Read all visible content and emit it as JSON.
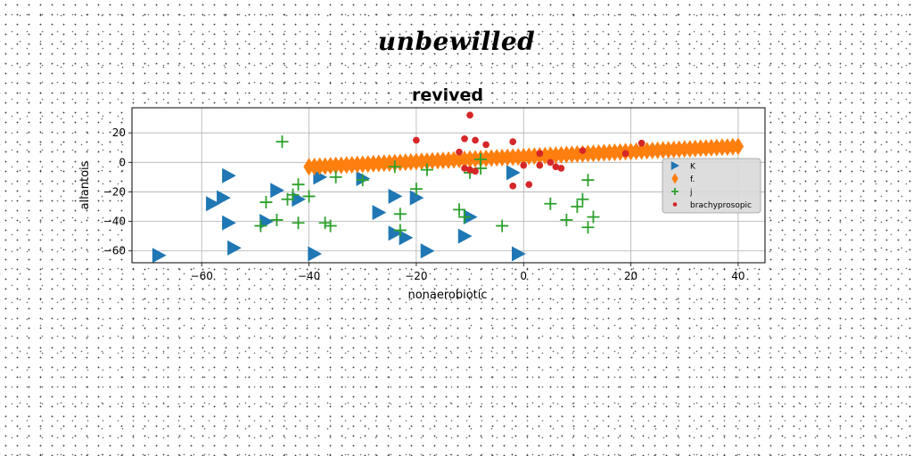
{
  "suptitle": "unbewilled",
  "chart_data": {
    "type": "scatter",
    "title": "revived",
    "xlabel": "nonaerobiotic",
    "ylabel": "allantois",
    "xlim": [
      -73,
      45
    ],
    "ylim": [
      -68,
      37
    ],
    "xticks": [
      -60,
      -40,
      -20,
      0,
      20,
      40
    ],
    "yticks": [
      -60,
      -40,
      -20,
      0,
      20
    ],
    "grid": true,
    "legend_position": "right",
    "series": [
      {
        "name": "K",
        "marker": "triangle-right",
        "color": "#1f77b4",
        "points": [
          [
            -68,
            -63
          ],
          [
            -55,
            -9
          ],
          [
            -56,
            -24
          ],
          [
            -58,
            -28
          ],
          [
            -55,
            -41
          ],
          [
            -54,
            -58
          ],
          [
            -48,
            -40
          ],
          [
            -46,
            -19
          ],
          [
            -42,
            -25
          ],
          [
            -39,
            -62
          ],
          [
            -38,
            -10
          ],
          [
            -30,
            -11
          ],
          [
            -27,
            -34
          ],
          [
            -24,
            -23
          ],
          [
            -24,
            -48
          ],
          [
            -22,
            -51
          ],
          [
            -20,
            -24
          ],
          [
            -18,
            -60
          ],
          [
            -11,
            -50
          ],
          [
            -10,
            -37
          ],
          [
            -1,
            -62
          ],
          [
            -2,
            -7
          ]
        ]
      },
      {
        "name": "f.",
        "marker": "diamond",
        "color": "#ff7f0e",
        "points": [
          [
            -40,
            -3
          ],
          [
            -39,
            -2.8
          ],
          [
            -38,
            -2.6
          ],
          [
            -37,
            -2.5
          ],
          [
            -36,
            -2.3
          ],
          [
            -35,
            -2.1
          ],
          [
            -34,
            -2
          ],
          [
            -33,
            -1.8
          ],
          [
            -32,
            -1.6
          ],
          [
            -31,
            -1.4
          ],
          [
            -30,
            -1.3
          ],
          [
            -29,
            -1.1
          ],
          [
            -28,
            -0.9
          ],
          [
            -27,
            -0.7
          ],
          [
            -26,
            -0.6
          ],
          [
            -25,
            -0.4
          ],
          [
            -24,
            -0.2
          ],
          [
            -23,
            0
          ],
          [
            -22,
            0.1
          ],
          [
            -21,
            0.3
          ],
          [
            -20,
            0.5
          ],
          [
            -19,
            0.7
          ],
          [
            -18,
            0.8
          ],
          [
            -17,
            1
          ],
          [
            -16,
            1.2
          ],
          [
            -15,
            1.3
          ],
          [
            -14,
            1.5
          ],
          [
            -13,
            1.7
          ],
          [
            -12,
            1.9
          ],
          [
            -11,
            2
          ],
          [
            -10,
            2.2
          ],
          [
            -9,
            2.4
          ],
          [
            -8,
            2.5
          ],
          [
            -7,
            2.7
          ],
          [
            -6,
            2.9
          ],
          [
            -5,
            3.1
          ],
          [
            -4,
            3.2
          ],
          [
            -3,
            3.4
          ],
          [
            -2,
            3.6
          ],
          [
            -1,
            3.7
          ],
          [
            0,
            3.9
          ],
          [
            1,
            4.1
          ],
          [
            2,
            4.3
          ],
          [
            3,
            4.4
          ],
          [
            4,
            4.6
          ],
          [
            5,
            4.8
          ],
          [
            6,
            4.9
          ],
          [
            7,
            5.1
          ],
          [
            8,
            5.3
          ],
          [
            9,
            5.5
          ],
          [
            10,
            5.6
          ],
          [
            11,
            5.8
          ],
          [
            12,
            6
          ],
          [
            13,
            6.1
          ],
          [
            14,
            6.3
          ],
          [
            15,
            6.5
          ],
          [
            16,
            6.7
          ],
          [
            17,
            6.8
          ],
          [
            18,
            7
          ],
          [
            19,
            7.2
          ],
          [
            20,
            7.3
          ],
          [
            21,
            7.5
          ],
          [
            22,
            7.7
          ],
          [
            23,
            7.9
          ],
          [
            24,
            8
          ],
          [
            25,
            8.2
          ],
          [
            26,
            8.4
          ],
          [
            27,
            8.5
          ],
          [
            28,
            8.7
          ],
          [
            29,
            8.9
          ],
          [
            30,
            9.1
          ],
          [
            31,
            9.2
          ],
          [
            32,
            9.4
          ],
          [
            33,
            9.6
          ],
          [
            34,
            9.7
          ],
          [
            35,
            9.9
          ],
          [
            36,
            10.1
          ],
          [
            37,
            10.3
          ],
          [
            38,
            10.4
          ],
          [
            39,
            10.6
          ],
          [
            40,
            10.8
          ]
        ]
      },
      {
        "name": "j",
        "marker": "plus",
        "color": "#2ca02c",
        "points": [
          [
            -45,
            14
          ],
          [
            -42,
            -15
          ],
          [
            -43,
            -22
          ],
          [
            -44,
            -25
          ],
          [
            -40,
            -23
          ],
          [
            -42,
            -41
          ],
          [
            -46,
            -39
          ],
          [
            -48,
            -27
          ],
          [
            -49,
            -43
          ],
          [
            -37,
            -41
          ],
          [
            -36,
            -43
          ],
          [
            -35,
            -10
          ],
          [
            -30,
            -12
          ],
          [
            -24,
            -3
          ],
          [
            -23,
            -35
          ],
          [
            -23,
            -46
          ],
          [
            -20,
            -18
          ],
          [
            -18,
            -5
          ],
          [
            -12,
            -32
          ],
          [
            -11,
            -37
          ],
          [
            -10,
            -7
          ],
          [
            -8,
            2
          ],
          [
            -8,
            -4
          ],
          [
            -4,
            -43
          ],
          [
            5,
            -28
          ],
          [
            8,
            -39
          ],
          [
            10,
            -30
          ],
          [
            11,
            -25
          ],
          [
            12,
            -12
          ],
          [
            12,
            -44
          ],
          [
            13,
            -37
          ]
        ]
      },
      {
        "name": "brachyprosopic",
        "marker": "circle",
        "color": "#d62728",
        "points": [
          [
            -20,
            15
          ],
          [
            -10,
            32
          ],
          [
            -11,
            16
          ],
          [
            -9,
            15
          ],
          [
            -7,
            12
          ],
          [
            -12,
            7
          ],
          [
            -10,
            -5
          ],
          [
            -11,
            -4
          ],
          [
            -9,
            -6
          ],
          [
            -2,
            14
          ],
          [
            -2,
            -16
          ],
          [
            0,
            -2
          ],
          [
            1,
            -15
          ],
          [
            3,
            6
          ],
          [
            3,
            -2
          ],
          [
            5,
            0
          ],
          [
            6,
            -3
          ],
          [
            7,
            -4
          ],
          [
            11,
            8
          ],
          [
            19,
            6
          ],
          [
            22,
            13
          ]
        ]
      }
    ]
  }
}
